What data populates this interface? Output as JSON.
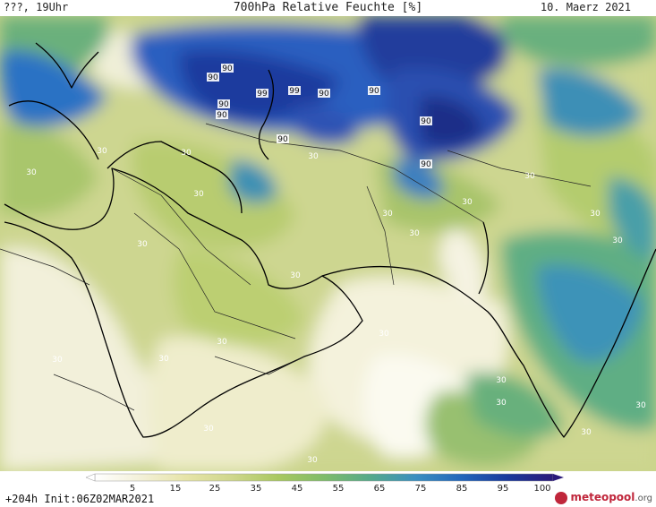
{
  "header": {
    "left_text": "???, 19Uhr",
    "title": "700hPa Relative Feuchte [%]",
    "date": "10. Maerz 2021"
  },
  "colorbar": {
    "ticks": [
      "5",
      "15",
      "25",
      "35",
      "45",
      "55",
      "65",
      "75",
      "85",
      "95",
      "100"
    ],
    "colors": [
      "#ffffff",
      "#f3f0d8",
      "#e6e4a8",
      "#cfd78c",
      "#a9c860",
      "#7fbc6a",
      "#55aa8a",
      "#3b8fc0",
      "#2266bb",
      "#1a3a9c",
      "#2a1a7a"
    ]
  },
  "footer": {
    "run_info": "+204h Init:06Z02MAR2021",
    "logo_text": "meteopool",
    "logo_domain": ".org"
  },
  "contour_labels": [
    "90",
    "90",
    "99",
    "99",
    "90",
    "90",
    "90",
    "90",
    "90",
    "90",
    "90",
    "30",
    "30",
    "30",
    "30",
    "30",
    "30",
    "30",
    "30",
    "30",
    "30",
    "30",
    "30",
    "30",
    "30",
    "30",
    "30",
    "30",
    "30",
    "30",
    "30",
    "30",
    "30",
    "30"
  ]
}
